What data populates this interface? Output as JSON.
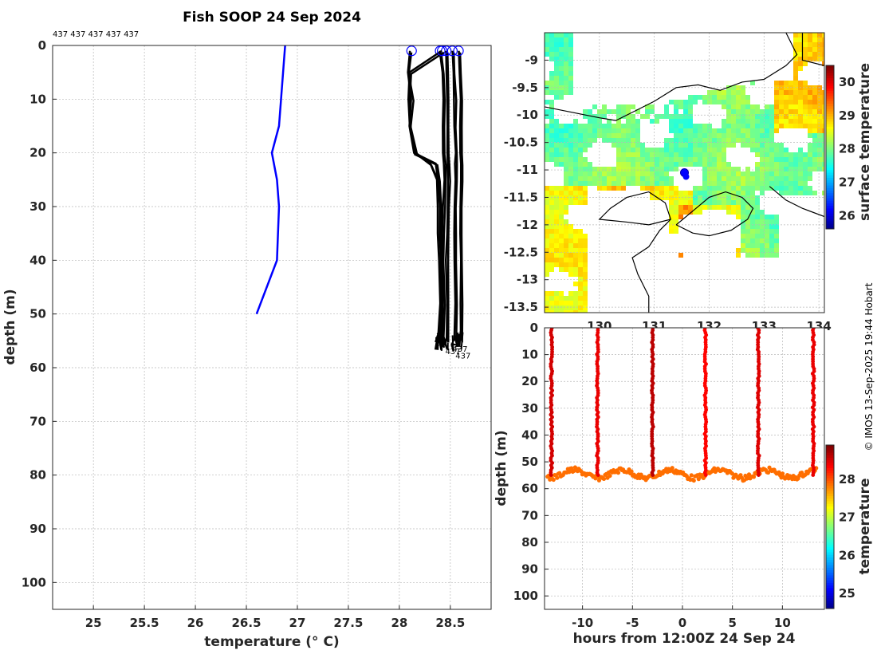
{
  "chart_data": [
    {
      "type": "line",
      "title": "Fish SOOP 24 Sep 2024",
      "xlabel": "temperature (° C)",
      "ylabel": "depth (m)",
      "xlim": [
        24.6,
        28.9
      ],
      "ylim": [
        105,
        0
      ],
      "xticks": [
        25,
        25.5,
        26,
        26.5,
        27,
        27.5,
        28,
        28.5
      ],
      "xtick_labels": [
        "25",
        "25.5",
        "26",
        "26.5",
        "27",
        "27.5",
        "28",
        "28.5"
      ],
      "yticks": [
        0,
        10,
        20,
        30,
        40,
        50,
        60,
        70,
        80,
        90,
        100
      ],
      "ytick_labels": [
        "0",
        "10",
        "20",
        "30",
        "40",
        "50",
        "60",
        "70",
        "80",
        "90",
        "100"
      ],
      "grid": true,
      "top_annotation": "437 437 437 437 437",
      "bottom_annotations": [
        "437",
        "437",
        "437"
      ],
      "climatology": {
        "name": "climatology",
        "color": "#0000ff",
        "temperature": [
          26.88,
          26.86,
          26.84,
          26.82,
          26.75,
          26.8,
          26.82,
          26.8,
          26.6
        ],
        "depth": [
          0,
          5,
          10,
          15,
          20,
          25,
          30,
          40,
          50
        ]
      },
      "profiles": [
        {
          "start_temp": 28.12,
          "surface_temps": [
            28.1,
            28.08,
            28.12,
            28.1,
            28.14,
            28.36,
            28.38,
            28.4,
            28.4,
            28.41,
            28.41,
            28.4
          ],
          "depth": [
            1,
            5,
            10,
            15,
            20,
            22,
            25,
            30,
            35,
            40,
            48,
            55
          ]
        },
        {
          "start_temp": 28.4,
          "surface_temps": [
            28.4,
            28.42,
            28.43,
            28.43,
            28.43,
            28.44,
            28.44,
            28.43,
            28.42,
            28.42,
            28.43,
            28.42
          ],
          "depth": [
            1,
            5,
            10,
            15,
            20,
            22,
            25,
            30,
            35,
            40,
            48,
            55
          ]
        },
        {
          "start_temp": 28.46,
          "surface_temps": [
            28.46,
            28.46,
            28.47,
            28.47,
            28.47,
            28.48,
            28.48,
            28.47,
            28.47,
            28.46,
            28.47,
            28.46
          ],
          "depth": [
            1,
            5,
            10,
            15,
            20,
            22,
            25,
            30,
            35,
            40,
            48,
            55
          ]
        },
        {
          "start_temp": 28.52,
          "surface_temps": [
            28.52,
            28.53,
            28.54,
            28.54,
            28.55,
            28.55,
            28.55,
            28.54,
            28.54,
            28.54,
            28.55,
            28.54
          ],
          "depth": [
            1,
            5,
            10,
            15,
            20,
            22,
            25,
            30,
            35,
            40,
            48,
            55
          ]
        },
        {
          "start_temp": 28.58,
          "surface_temps": [
            28.58,
            28.59,
            28.6,
            28.6,
            28.6,
            28.6,
            28.6,
            28.6,
            28.6,
            28.6,
            28.6,
            28.6
          ],
          "depth": [
            1,
            5,
            10,
            15,
            20,
            22,
            25,
            30,
            35,
            40,
            48,
            55
          ]
        },
        {
          "start_temp": 28.42,
          "surface_temps": [
            28.42,
            28.1,
            28.09,
            28.1,
            28.16,
            28.3,
            28.37,
            28.38,
            28.38,
            28.39,
            28.4,
            28.38
          ],
          "depth": [
            1,
            5,
            10,
            15,
            20,
            22,
            25,
            30,
            35,
            40,
            48,
            55
          ]
        }
      ]
    },
    {
      "type": "heatmap",
      "xlim": [
        129.0,
        134.1
      ],
      "ylim": [
        -13.6,
        -8.5
      ],
      "xticks": [
        130,
        131,
        132,
        133,
        134
      ],
      "xtick_labels": [
        "130",
        "131",
        "132",
        "133",
        "134"
      ],
      "yticks": [
        -9,
        -9.5,
        -10,
        -10.5,
        -11,
        -11.5,
        -12,
        -12.5,
        -13,
        -13.5
      ],
      "ytick_labels": [
        "-9",
        "-9.5",
        "-10",
        "-10.5",
        "-11",
        "-11.5",
        "-12",
        "-12.5",
        "-13",
        "-13.5"
      ],
      "grid": true,
      "colorbar": {
        "label": "surface temperature",
        "range": [
          25.6,
          30.5
        ],
        "ticks": [
          26,
          27,
          28,
          29,
          30
        ],
        "tick_labels": [
          "26",
          "27",
          "28",
          "29",
          "30"
        ]
      },
      "ship_position": {
        "lon": 131.55,
        "lat": -11.05
      }
    },
    {
      "type": "scatter",
      "xlabel": "hours from 12:00Z 24 Sep 24",
      "ylabel": "depth (m)",
      "xlim": [
        -13.8,
        14.2
      ],
      "ylim": [
        105,
        0
      ],
      "xticks": [
        -10,
        -5,
        0,
        5,
        10
      ],
      "xtick_labels": [
        "-10",
        "-5",
        "0",
        "5",
        "10"
      ],
      "yticks": [
        0,
        10,
        20,
        30,
        40,
        50,
        60,
        70,
        80,
        90,
        100
      ],
      "ytick_labels": [
        "0",
        "10",
        "20",
        "30",
        "40",
        "50",
        "60",
        "70",
        "80",
        "90",
        "100"
      ],
      "grid": true,
      "casts_hours": [
        -13.1,
        -8.5,
        -3.0,
        2.3,
        7.6,
        13.1
      ],
      "casts_color_temp": [
        28.55,
        28.45,
        28.65,
        28.35,
        28.5,
        28.45
      ],
      "bottom_depth_range": [
        52,
        57
      ],
      "colorbar": {
        "label": "temperature",
        "range": [
          24.6,
          28.9
        ],
        "ticks": [
          25,
          26,
          27,
          28
        ],
        "tick_labels": [
          "25",
          "26",
          "27",
          "28"
        ]
      }
    }
  ],
  "credit": "© IMOS 13-Sep-2025 19:44 Hobart"
}
